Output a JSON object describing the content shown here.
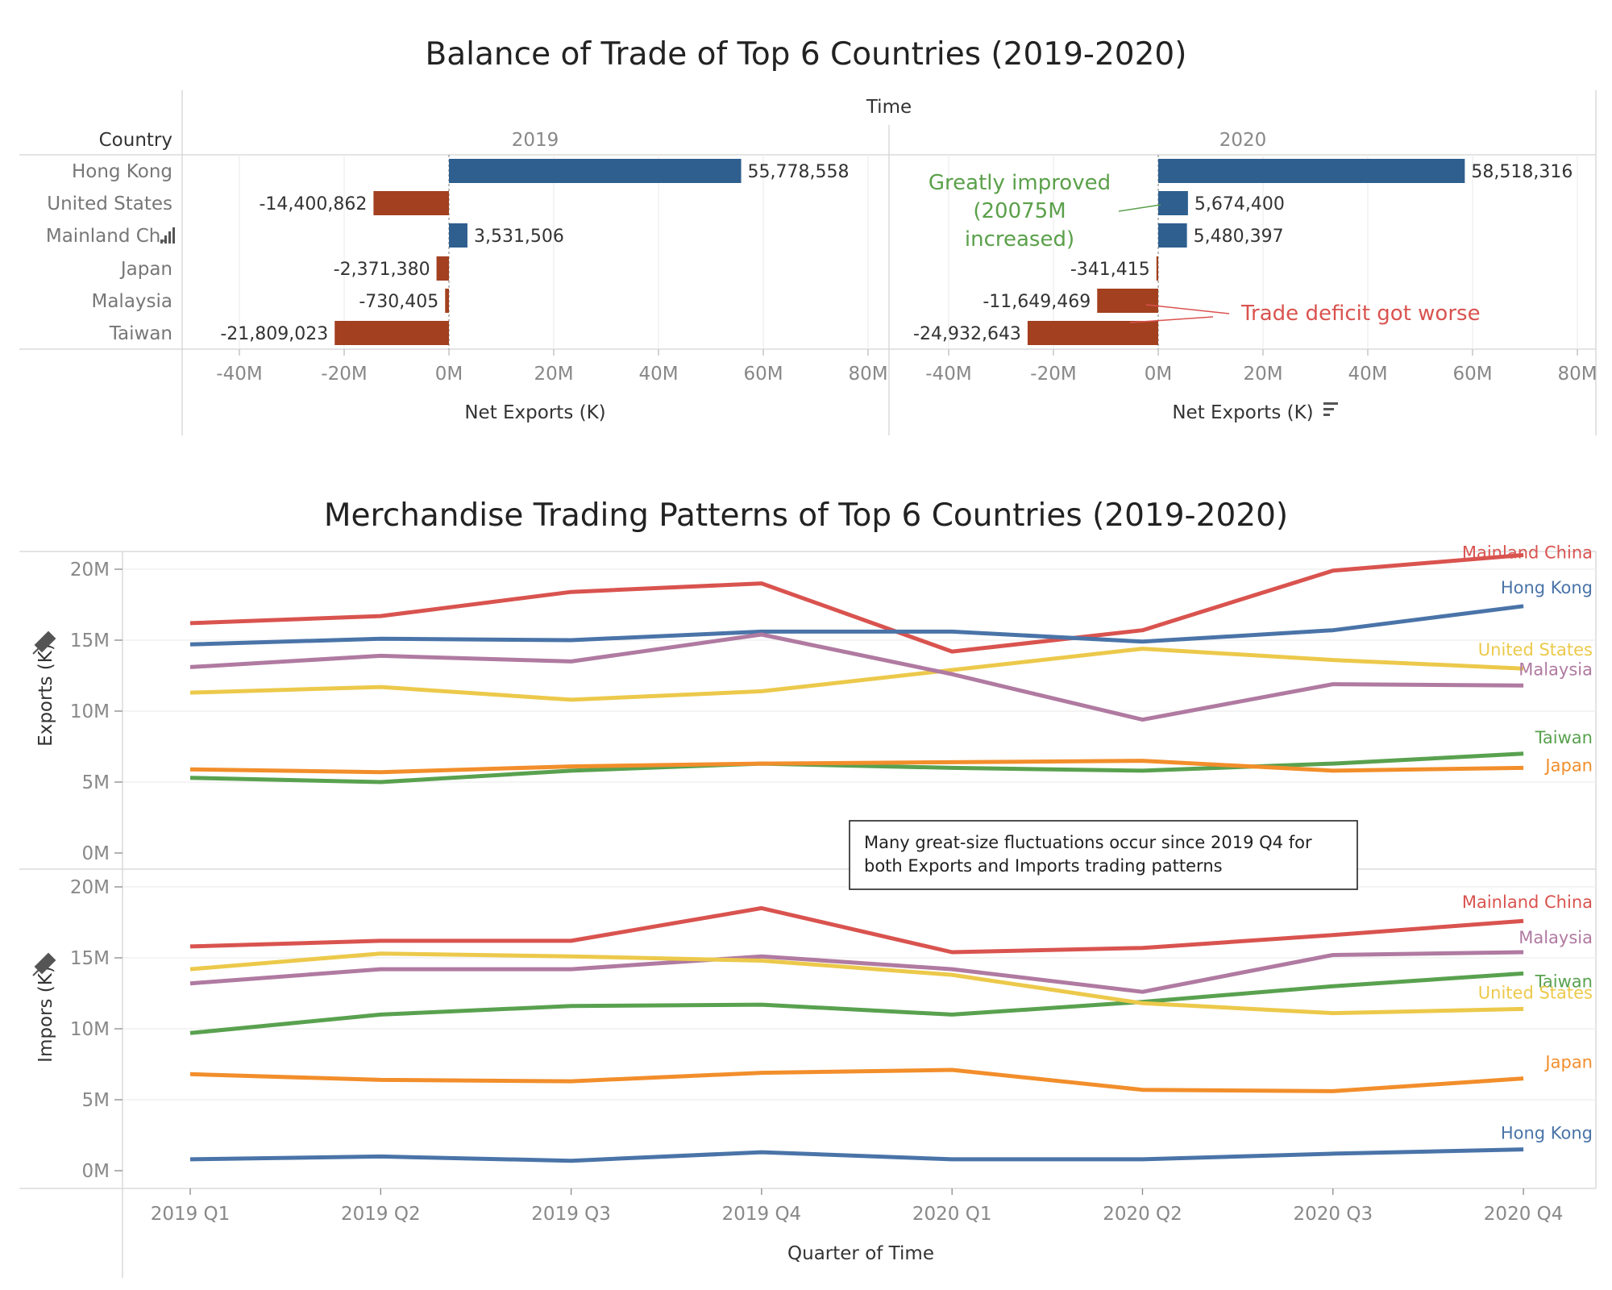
{
  "chart_data": [
    {
      "type": "bar",
      "title": "Balance of Trade of Top 6 Countries (2019-2020)",
      "column_header": "Time",
      "row_header": "Country",
      "categories": [
        "Hong Kong",
        "United States",
        "Mainland Ch..",
        "Japan",
        "Malaysia",
        "Taiwan"
      ],
      "panels": [
        {
          "name": "2019",
          "values": [
            55778558,
            -14400862,
            3531506,
            -2371380,
            -730405,
            -21809023
          ],
          "labels": [
            "55,778,558",
            "-14,400,862",
            "3,531,506",
            "-2,371,380",
            "-730,405",
            "-21,809,023"
          ]
        },
        {
          "name": "2020",
          "values": [
            58518316,
            5674400,
            5480397,
            -341415,
            -11649469,
            -24932643
          ],
          "labels": [
            "58,518,316",
            "5,674,400",
            "5,480,397",
            "-341,415",
            "-11,649,469",
            "-24,932,643"
          ]
        }
      ],
      "xlabel": "Net Exports (K)",
      "xlim": [
        -50000000,
        80000000
      ],
      "xticks": [
        -40000000,
        -20000000,
        0,
        20000000,
        40000000,
        60000000,
        80000000
      ],
      "xtick_labels": [
        "-40M",
        "-20M",
        "0M",
        "20M",
        "40M",
        "60M",
        "80M"
      ],
      "colors": {
        "positive": "#2e5f8e",
        "negative": "#a3401f"
      },
      "annotations": [
        {
          "lines": [
            "Greatly improved",
            "(20075M",
            "increased)"
          ],
          "color": "#5aa04a"
        },
        {
          "lines": [
            "Trade deficit got worse"
          ],
          "color": "#d9534f"
        }
      ]
    },
    {
      "type": "line",
      "title": "Merchandise Trading Patterns of Top 6 Countries (2019-2020)",
      "x": [
        "2019 Q1",
        "2019 Q2",
        "2019 Q3",
        "2019 Q4",
        "2020 Q1",
        "2020 Q2",
        "2020 Q3",
        "2020 Q4"
      ],
      "xlabel": "Quarter of Time",
      "yticks": [
        0,
        5000000,
        10000000,
        15000000,
        20000000
      ],
      "ytick_labels": [
        "0M",
        "5M",
        "10M",
        "15M",
        "20M"
      ],
      "note": "Many great-size fluctuations occur since 2019 Q4 for both Exports and Imports trading patterns",
      "panels": [
        {
          "ylabel": "Exports (K)",
          "ylim": [
            0,
            21500000
          ],
          "series": [
            {
              "name": "Mainland China",
              "color": "#d9534f",
              "values": [
                16200000,
                16700000,
                18400000,
                19000000,
                14200000,
                15700000,
                19900000,
                21000000
              ]
            },
            {
              "name": "Hong Kong",
              "color": "#4a74a8",
              "values": [
                14700000,
                15100000,
                15000000,
                15600000,
                15600000,
                14900000,
                15700000,
                17400000
              ]
            },
            {
              "name": "United States",
              "color": "#ecc94b",
              "values": [
                11300000,
                11700000,
                10800000,
                11400000,
                12900000,
                14400000,
                13600000,
                13000000
              ]
            },
            {
              "name": "Malaysia",
              "color": "#b07aa1",
              "values": [
                13100000,
                13900000,
                13500000,
                15400000,
                12600000,
                9400000,
                11900000,
                11800000
              ]
            },
            {
              "name": "Taiwan",
              "color": "#59a14f",
              "values": [
                5300000,
                5000000,
                5800000,
                6300000,
                6000000,
                5800000,
                6300000,
                7000000
              ]
            },
            {
              "name": "Japan",
              "color": "#f28e2b",
              "values": [
                5900000,
                5700000,
                6100000,
                6300000,
                6400000,
                6500000,
                5800000,
                6000000
              ]
            }
          ]
        },
        {
          "ylabel": "Impors (K)",
          "ylim": [
            0,
            21500000
          ],
          "series": [
            {
              "name": "Mainland China",
              "color": "#d9534f",
              "values": [
                15800000,
                16200000,
                16200000,
                18500000,
                15400000,
                15700000,
                16600000,
                17600000
              ]
            },
            {
              "name": "Malaysia",
              "color": "#b07aa1",
              "values": [
                13200000,
                14200000,
                14200000,
                15100000,
                14200000,
                12600000,
                15200000,
                15400000
              ]
            },
            {
              "name": "Taiwan",
              "color": "#59a14f",
              "values": [
                9700000,
                11000000,
                11600000,
                11700000,
                11000000,
                11900000,
                13000000,
                13900000
              ]
            },
            {
              "name": "United States",
              "color": "#ecc94b",
              "values": [
                14200000,
                15300000,
                15100000,
                14800000,
                13800000,
                11800000,
                11100000,
                11400000
              ]
            },
            {
              "name": "Japan",
              "color": "#f28e2b",
              "values": [
                6800000,
                6400000,
                6300000,
                6900000,
                7100000,
                5700000,
                5600000,
                6500000
              ]
            },
            {
              "name": "Hong Kong",
              "color": "#4a74a8",
              "values": [
                800000,
                1000000,
                700000,
                1300000,
                800000,
                800000,
                1200000,
                1500000
              ]
            }
          ]
        }
      ]
    }
  ]
}
